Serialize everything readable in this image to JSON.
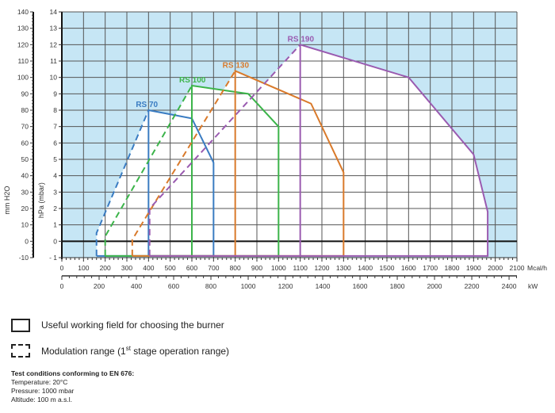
{
  "chart_data": {
    "type": "line",
    "xlabel": "Mcal/h",
    "x2label": "kW",
    "ylabel": "hPa (mbar)",
    "y2label": "mm H2O",
    "xlim": [
      0,
      2100
    ],
    "ylim": [
      -1,
      14
    ],
    "xticks": [
      0,
      100,
      200,
      300,
      400,
      500,
      600,
      700,
      800,
      900,
      1000,
      1100,
      1200,
      1300,
      1400,
      1500,
      1600,
      1700,
      1800,
      1900,
      2000,
      2100
    ],
    "kw_ticks": [
      0,
      200,
      400,
      600,
      800,
      1000,
      1200,
      1400,
      1600,
      1800,
      2000,
      2200,
      2400
    ],
    "yticks": [
      14,
      13,
      12,
      11,
      10,
      9,
      8,
      7,
      6,
      5,
      4,
      3,
      2,
      1,
      0,
      -1
    ],
    "ytick_labels": [
      "14",
      "13",
      "12",
      "11",
      "10",
      "9",
      "8",
      "7",
      "6",
      "5",
      "4",
      "3",
      "2",
      "1",
      "0",
      "- 1"
    ],
    "mm_ticks": [
      140,
      130,
      120,
      110,
      100,
      90,
      80,
      70,
      60,
      50,
      40,
      30,
      20,
      10,
      0,
      -10
    ],
    "grid": true,
    "background_outside_field": "#c6e6f5",
    "series": [
      {
        "name": "RS 70",
        "color": "#3a7cc2",
        "modulation": [
          [
            160,
            -0.9
          ],
          [
            160,
            0.5
          ],
          [
            400,
            8
          ]
        ],
        "working_field": [
          [
            400,
            -0.9
          ],
          [
            400,
            8
          ],
          [
            600,
            7.5
          ],
          [
            700,
            4.8
          ],
          [
            700,
            -0.9
          ],
          [
            160,
            -0.9
          ]
        ]
      },
      {
        "name": "RS 100",
        "color": "#3cb44a",
        "modulation": [
          [
            200,
            -0.9
          ],
          [
            200,
            0.3
          ],
          [
            600,
            9.5
          ]
        ],
        "working_field": [
          [
            600,
            -0.9
          ],
          [
            600,
            9.5
          ],
          [
            860,
            9
          ],
          [
            1000,
            7
          ],
          [
            1000,
            -0.9
          ],
          [
            200,
            -0.9
          ]
        ]
      },
      {
        "name": "RS 130",
        "color": "#d97a2b",
        "modulation": [
          [
            325,
            -0.9
          ],
          [
            325,
            0.1
          ],
          [
            800,
            10.4
          ]
        ],
        "working_field": [
          [
            800,
            -0.9
          ],
          [
            800,
            10.4
          ],
          [
            1150,
            8.4
          ],
          [
            1300,
            4.2
          ],
          [
            1300,
            -0.9
          ],
          [
            325,
            -0.9
          ]
        ]
      },
      {
        "name": "RS 190",
        "color": "#9a5bb0",
        "modulation": [
          [
            405,
            -0.9
          ],
          [
            405,
            2
          ],
          [
            1100,
            12
          ]
        ],
        "working_field": [
          [
            1100,
            -0.9
          ],
          [
            1100,
            12
          ],
          [
            1600,
            10
          ],
          [
            1900,
            5.3
          ],
          [
            1965,
            1.8
          ],
          [
            1965,
            -0.9
          ],
          [
            405,
            -0.9
          ]
        ]
      }
    ]
  },
  "legend": {
    "working_field": "Useful working field for choosing the burner",
    "modulation_pre": "Modulation range (1",
    "modulation_sup": "st",
    "modulation_post": " stage operation range)"
  },
  "notes": {
    "title": "Test conditions conforming to EN 676:",
    "lines": [
      "Temperature: 20°C",
      "Pressure: 1000 mbar",
      "Altitude: 100 m a.s.l."
    ]
  }
}
